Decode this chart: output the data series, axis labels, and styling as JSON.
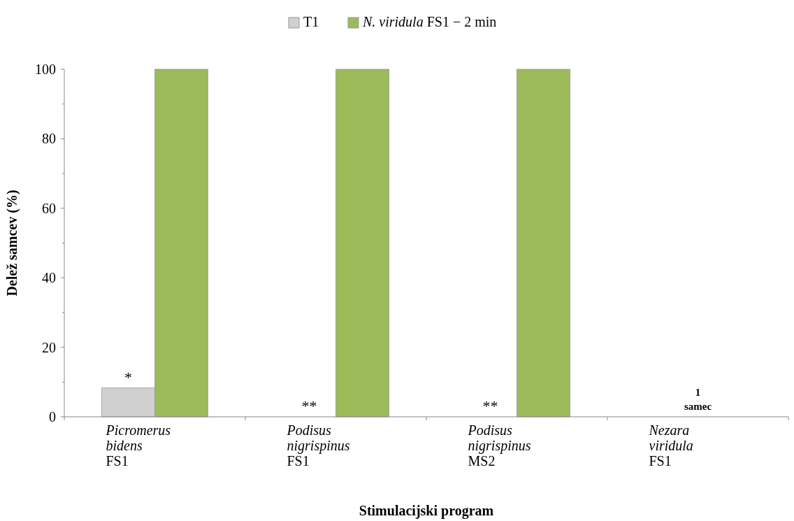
{
  "chart_data": {
    "type": "bar",
    "xlabel": "Stimulacijski program",
    "ylabel": "Delež samcev (%)",
    "categories": [
      "Picromerus\nbidens\nFS1",
      "Podisus\nnigrispinus\nFS1",
      "Podisus\nnigrispinus\nMS2",
      "Nezara\nviridula\nFS1"
    ],
    "series": [
      {
        "name": "T1",
        "color": "#d0d0d0",
        "values": [
          8.3,
          0,
          0,
          0
        ]
      },
      {
        "name": "N. viridula FS1 − 2 min",
        "color": "#9bbb59",
        "values": [
          100,
          100,
          100,
          0
        ]
      }
    ],
    "ylim": [
      0,
      100
    ],
    "yticks": [
      0,
      20,
      40,
      60,
      80,
      100
    ],
    "grid": false,
    "legend": "top",
    "annotations": [
      {
        "text": "*",
        "x": "Picromerus\nbidens\nFS1",
        "y": 8.3
      },
      {
        "text": "**",
        "x": "Podisus\nnigrispinus\nFS1",
        "y": 0
      },
      {
        "text": "**",
        "x": "Podisus\nnigrispinus\nMS2",
        "y": 0
      },
      {
        "text": "1\nsamec",
        "x": "Nezara\nviridula\nFS1",
        "y": 0
      }
    ]
  }
}
